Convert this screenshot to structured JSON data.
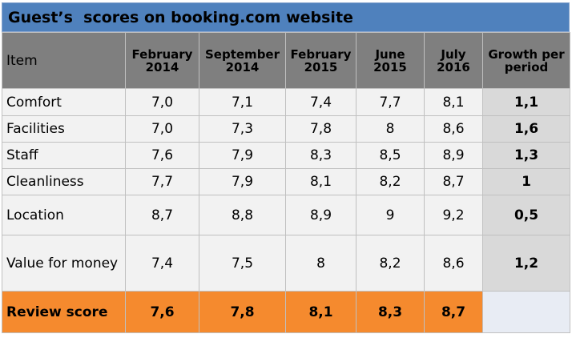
{
  "title": "Guest’s  scores on booking.com website",
  "chart_data": {
    "type": "table",
    "columns": [
      "Item",
      "February 2014",
      "September 2014",
      "February 2015",
      "June 2015",
      "July 2016",
      "Growth per period"
    ],
    "header_lines": [
      [
        "Item"
      ],
      [
        "February",
        "2014"
      ],
      [
        "September",
        "2014"
      ],
      [
        "February",
        "2015"
      ],
      [
        "June",
        "2015"
      ],
      [
        "July",
        "2016"
      ],
      [
        "Growth per",
        "period"
      ]
    ],
    "rows": [
      {
        "item": "Comfort",
        "values": [
          "7,0",
          "7,1",
          "7,4",
          "7,7",
          "8,1"
        ],
        "growth": "1,1"
      },
      {
        "item": "Facilities",
        "values": [
          "7,0",
          "7,3",
          "7,8",
          "8",
          "8,6"
        ],
        "growth": "1,6"
      },
      {
        "item": "Staff",
        "values": [
          "7,6",
          "7,9",
          "8,3",
          "8,5",
          "8,9"
        ],
        "growth": "1,3"
      },
      {
        "item": "Cleanliness",
        "values": [
          "7,7",
          "7,9",
          "8,1",
          "8,2",
          "8,7"
        ],
        "growth": "1"
      },
      {
        "item": "Location",
        "values": [
          "8,7",
          "8,8",
          "8,9",
          "9",
          "9,2"
        ],
        "growth": "0,5"
      },
      {
        "item": "Value for money",
        "values": [
          "7,4",
          "7,5",
          "8",
          "8,2",
          "8,6"
        ],
        "growth": "1,2"
      }
    ],
    "review": {
      "item": "Review score",
      "values": [
        "7,6",
        "7,8",
        "8,1",
        "8,3",
        "8,7"
      ],
      "growth": ""
    }
  },
  "colors": {
    "title_bar": "#4f81bd",
    "header": "#7f7f7f",
    "cell": "#f2f2f2",
    "growth_cell": "#d9d9d9",
    "review_row": "#f58a2e",
    "review_empty": "#e8ecf4"
  }
}
